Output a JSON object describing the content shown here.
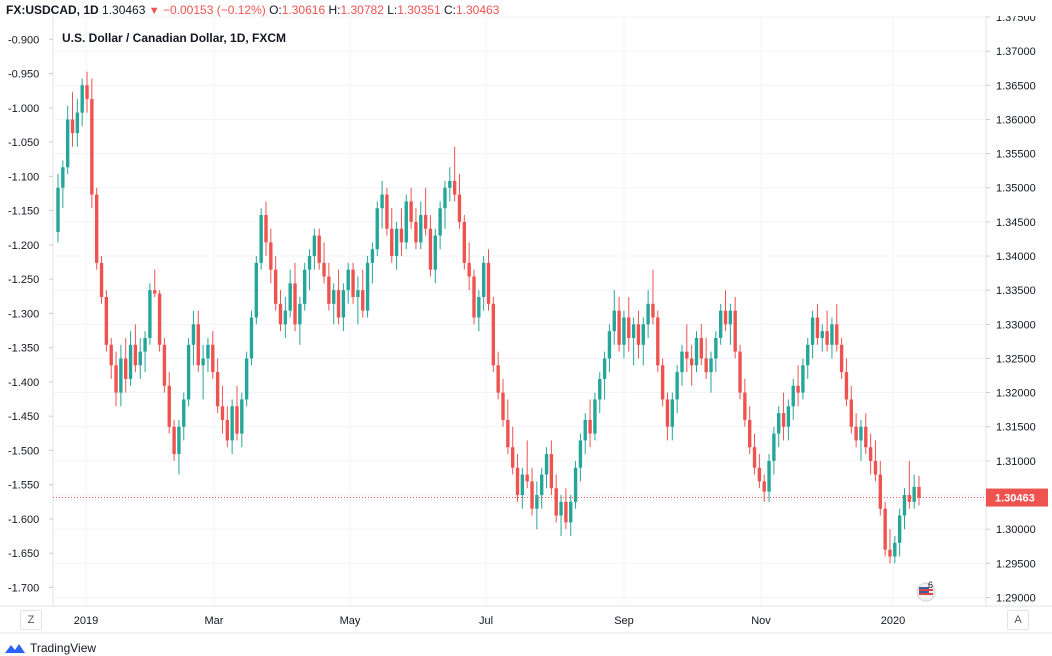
{
  "header": {
    "symbol": "FX:USDCAD, 1D",
    "last": "1.30463",
    "arrow": "▼",
    "change": "−0.00153 (−0.12%)",
    "open_label": "O:",
    "open": "1.30616",
    "high_label": "H:",
    "high": "1.30782",
    "low_label": "L:",
    "low": "1.30351",
    "close_label": "C:",
    "close": "1.30463"
  },
  "footer": {
    "brand": "TradingView",
    "z_button": "Z",
    "a_button": "A"
  },
  "colors": {
    "up": "#26a69a",
    "down": "#ef5350",
    "grid": "#f0f3fa",
    "axis": "#e0e3eb",
    "text": "#131722",
    "price_line": "#ef5350"
  },
  "chart_data": {
    "type": "candlestick",
    "title": "U.S. Dollar / Canadian Dollar, 1D, FXCM",
    "right_axis": {
      "range": [
        1.28875,
        1.37515
      ],
      "ticks": [
        "1.37500",
        "1.37000",
        "1.36500",
        "1.36000",
        "1.35500",
        "1.35000",
        "1.34500",
        "1.34000",
        "1.33500",
        "1.33000",
        "1.32500",
        "1.32000",
        "1.31500",
        "1.31000",
        "1.30500",
        "1.30000",
        "1.29500",
        "1.29000"
      ]
    },
    "left_axis": {
      "range": [
        -1.727,
        -0.866
      ],
      "ticks": [
        "-0.900",
        "-0.950",
        "-1.000",
        "-1.050",
        "-1.100",
        "-1.150",
        "-1.200",
        "-1.250",
        "-1.300",
        "-1.350",
        "-1.400",
        "-1.450",
        "-1.500",
        "-1.550",
        "-1.600",
        "-1.650",
        "-1.700"
      ]
    },
    "x_axis": {
      "labels": [
        "2019",
        "Mar",
        "May",
        "Jul",
        "Sep",
        "Nov",
        "2020"
      ]
    },
    "current_price": "1.30463",
    "grid": true,
    "candles": [
      [
        1.3435,
        1.352,
        1.342,
        1.35
      ],
      [
        1.35,
        1.354,
        1.347,
        1.353
      ],
      [
        1.353,
        1.362,
        1.352,
        1.36
      ],
      [
        1.36,
        1.364,
        1.356,
        1.358
      ],
      [
        1.358,
        1.363,
        1.356,
        1.361
      ],
      [
        1.361,
        1.366,
        1.359,
        1.365
      ],
      [
        1.365,
        1.367,
        1.361,
        1.363
      ],
      [
        1.363,
        1.366,
        1.347,
        1.349
      ],
      [
        1.349,
        1.35,
        1.338,
        1.339
      ],
      [
        1.339,
        1.34,
        1.333,
        1.334
      ],
      [
        1.334,
        1.335,
        1.326,
        1.327
      ],
      [
        1.327,
        1.328,
        1.322,
        1.324
      ],
      [
        1.324,
        1.326,
        1.318,
        1.32
      ],
      [
        1.32,
        1.327,
        1.318,
        1.325
      ],
      [
        1.325,
        1.328,
        1.32,
        1.322
      ],
      [
        1.322,
        1.329,
        1.321,
        1.327
      ],
      [
        1.327,
        1.33,
        1.323,
        1.324
      ],
      [
        1.324,
        1.328,
        1.322,
        1.326
      ],
      [
        1.326,
        1.329,
        1.323,
        1.328
      ],
      [
        1.328,
        1.336,
        1.327,
        1.335
      ],
      [
        1.335,
        1.338,
        1.334,
        1.3345
      ],
      [
        1.3345,
        1.335,
        1.326,
        1.327
      ],
      [
        1.327,
        1.328,
        1.32,
        1.321
      ],
      [
        1.321,
        1.323,
        1.314,
        1.315
      ],
      [
        1.315,
        1.316,
        1.31,
        1.311
      ],
      [
        1.311,
        1.316,
        1.308,
        1.315
      ],
      [
        1.315,
        1.32,
        1.313,
        1.319
      ],
      [
        1.319,
        1.328,
        1.318,
        1.327
      ],
      [
        1.327,
        1.332,
        1.324,
        1.33
      ],
      [
        1.33,
        1.332,
        1.323,
        1.324
      ],
      [
        1.324,
        1.327,
        1.319,
        1.325
      ],
      [
        1.325,
        1.328,
        1.323,
        1.327
      ],
      [
        1.327,
        1.329,
        1.322,
        1.323
      ],
      [
        1.323,
        1.325,
        1.317,
        1.318
      ],
      [
        1.318,
        1.321,
        1.314,
        1.316
      ],
      [
        1.316,
        1.318,
        1.312,
        1.313
      ],
      [
        1.313,
        1.319,
        1.311,
        1.318
      ],
      [
        1.318,
        1.321,
        1.313,
        1.314
      ],
      [
        1.314,
        1.32,
        1.312,
        1.319
      ],
      [
        1.319,
        1.326,
        1.318,
        1.325
      ],
      [
        1.325,
        1.332,
        1.324,
        1.331
      ],
      [
        1.331,
        1.34,
        1.33,
        1.339
      ],
      [
        1.339,
        1.347,
        1.338,
        1.346
      ],
      [
        1.346,
        1.348,
        1.34,
        1.342
      ],
      [
        1.342,
        1.344,
        1.336,
        1.338
      ],
      [
        1.338,
        1.34,
        1.332,
        1.333
      ],
      [
        1.333,
        1.335,
        1.329,
        1.33
      ],
      [
        1.33,
        1.334,
        1.328,
        1.332
      ],
      [
        1.332,
        1.338,
        1.331,
        1.336
      ],
      [
        1.336,
        1.339,
        1.329,
        1.33
      ],
      [
        1.33,
        1.334,
        1.327,
        1.333
      ],
      [
        1.333,
        1.339,
        1.332,
        1.338
      ],
      [
        1.338,
        1.341,
        1.335,
        1.34
      ],
      [
        1.34,
        1.344,
        1.338,
        1.343
      ],
      [
        1.343,
        1.344,
        1.338,
        1.339
      ],
      [
        1.339,
        1.342,
        1.336,
        1.337
      ],
      [
        1.337,
        1.339,
        1.332,
        1.333
      ],
      [
        1.333,
        1.336,
        1.33,
        1.335
      ],
      [
        1.335,
        1.338,
        1.33,
        1.331
      ],
      [
        1.331,
        1.336,
        1.329,
        1.335
      ],
      [
        1.335,
        1.339,
        1.333,
        1.338
      ],
      [
        1.338,
        1.339,
        1.333,
        1.334
      ],
      [
        1.334,
        1.337,
        1.33,
        1.335
      ],
      [
        1.335,
        1.338,
        1.331,
        1.332
      ],
      [
        1.332,
        1.34,
        1.331,
        1.339
      ],
      [
        1.339,
        1.342,
        1.336,
        1.341
      ],
      [
        1.341,
        1.348,
        1.34,
        1.347
      ],
      [
        1.347,
        1.351,
        1.344,
        1.349
      ],
      [
        1.349,
        1.35,
        1.343,
        1.344
      ],
      [
        1.344,
        1.347,
        1.339,
        1.34
      ],
      [
        1.34,
        1.345,
        1.338,
        1.344
      ],
      [
        1.344,
        1.347,
        1.34,
        1.342
      ],
      [
        1.342,
        1.349,
        1.341,
        1.348
      ],
      [
        1.348,
        1.35,
        1.344,
        1.345
      ],
      [
        1.345,
        1.347,
        1.341,
        1.342
      ],
      [
        1.342,
        1.348,
        1.341,
        1.346
      ],
      [
        1.346,
        1.35,
        1.343,
        1.344
      ],
      [
        1.344,
        1.346,
        1.337,
        1.338
      ],
      [
        1.338,
        1.344,
        1.336,
        1.343
      ],
      [
        1.343,
        1.348,
        1.341,
        1.347
      ],
      [
        1.347,
        1.351,
        1.344,
        1.35
      ],
      [
        1.35,
        1.353,
        1.348,
        1.351
      ],
      [
        1.351,
        1.356,
        1.348,
        1.349
      ],
      [
        1.349,
        1.352,
        1.344,
        1.345
      ],
      [
        1.345,
        1.346,
        1.338,
        1.339
      ],
      [
        1.339,
        1.342,
        1.335,
        1.337
      ],
      [
        1.337,
        1.338,
        1.33,
        1.331
      ],
      [
        1.331,
        1.335,
        1.329,
        1.334
      ],
      [
        1.334,
        1.34,
        1.332,
        1.339
      ],
      [
        1.339,
        1.341,
        1.332,
        1.333
      ],
      [
        1.333,
        1.334,
        1.323,
        1.324
      ],
      [
        1.324,
        1.326,
        1.319,
        1.32
      ],
      [
        1.32,
        1.322,
        1.315,
        1.316
      ],
      [
        1.316,
        1.319,
        1.311,
        1.312
      ],
      [
        1.312,
        1.315,
        1.308,
        1.309
      ],
      [
        1.309,
        1.311,
        1.304,
        1.305
      ],
      [
        1.305,
        1.309,
        1.303,
        1.308
      ],
      [
        1.308,
        1.313,
        1.306,
        1.307
      ],
      [
        1.307,
        1.309,
        1.302,
        1.303
      ],
      [
        1.303,
        1.307,
        1.3,
        1.305
      ],
      [
        1.305,
        1.309,
        1.303,
        1.308
      ],
      [
        1.308,
        1.312,
        1.306,
        1.311
      ],
      [
        1.311,
        1.313,
        1.305,
        1.306
      ],
      [
        1.306,
        1.308,
        1.301,
        1.302
      ],
      [
        1.302,
        1.305,
        1.299,
        1.304
      ],
      [
        1.304,
        1.306,
        1.3,
        1.301
      ],
      [
        1.301,
        1.305,
        1.299,
        1.304
      ],
      [
        1.304,
        1.31,
        1.303,
        1.309
      ],
      [
        1.309,
        1.314,
        1.307,
        1.313
      ],
      [
        1.313,
        1.317,
        1.311,
        1.316
      ],
      [
        1.316,
        1.319,
        1.312,
        1.314
      ],
      [
        1.314,
        1.32,
        1.313,
        1.319
      ],
      [
        1.319,
        1.323,
        1.317,
        1.322
      ],
      [
        1.322,
        1.326,
        1.319,
        1.325
      ],
      [
        1.325,
        1.33,
        1.323,
        1.329
      ],
      [
        1.329,
        1.335,
        1.327,
        1.332
      ],
      [
        1.332,
        1.334,
        1.326,
        1.327
      ],
      [
        1.327,
        1.332,
        1.325,
        1.331
      ],
      [
        1.331,
        1.334,
        1.326,
        1.328
      ],
      [
        1.328,
        1.331,
        1.324,
        1.33
      ],
      [
        1.33,
        1.332,
        1.325,
        1.327
      ],
      [
        1.327,
        1.331,
        1.324,
        1.33
      ],
      [
        1.33,
        1.335,
        1.328,
        1.333
      ],
      [
        1.333,
        1.338,
        1.33,
        1.331
      ],
      [
        1.331,
        1.332,
        1.323,
        1.324
      ],
      [
        1.324,
        1.325,
        1.318,
        1.319
      ],
      [
        1.319,
        1.32,
        1.313,
        1.315
      ],
      [
        1.315,
        1.32,
        1.313,
        1.319
      ],
      [
        1.319,
        1.324,
        1.317,
        1.323
      ],
      [
        1.323,
        1.327,
        1.321,
        1.326
      ],
      [
        1.326,
        1.33,
        1.323,
        1.325
      ],
      [
        1.325,
        1.327,
        1.321,
        1.324
      ],
      [
        1.324,
        1.329,
        1.323,
        1.328
      ],
      [
        1.328,
        1.33,
        1.324,
        1.325
      ],
      [
        1.325,
        1.328,
        1.322,
        1.323
      ],
      [
        1.323,
        1.326,
        1.32,
        1.325
      ],
      [
        1.325,
        1.329,
        1.323,
        1.328
      ],
      [
        1.328,
        1.333,
        1.327,
        1.332
      ],
      [
        1.332,
        1.335,
        1.329,
        1.33
      ],
      [
        1.33,
        1.333,
        1.327,
        1.332
      ],
      [
        1.332,
        1.334,
        1.325,
        1.326
      ],
      [
        1.326,
        1.327,
        1.319,
        1.32
      ],
      [
        1.32,
        1.322,
        1.315,
        1.316
      ],
      [
        1.316,
        1.318,
        1.311,
        1.312
      ],
      [
        1.312,
        1.314,
        1.308,
        1.309
      ],
      [
        1.309,
        1.311,
        1.306,
        1.307
      ],
      [
        1.307,
        1.308,
        1.304,
        1.3055
      ],
      [
        1.3055,
        1.311,
        1.304,
        1.31
      ],
      [
        1.31,
        1.315,
        1.308,
        1.314
      ],
      [
        1.314,
        1.318,
        1.312,
        1.317
      ],
      [
        1.317,
        1.32,
        1.313,
        1.315
      ],
      [
        1.315,
        1.319,
        1.313,
        1.318
      ],
      [
        1.318,
        1.322,
        1.316,
        1.321
      ],
      [
        1.321,
        1.324,
        1.318,
        1.32
      ],
      [
        1.32,
        1.325,
        1.319,
        1.324
      ],
      [
        1.324,
        1.328,
        1.322,
        1.327
      ],
      [
        1.327,
        1.332,
        1.325,
        1.331
      ],
      [
        1.331,
        1.333,
        1.327,
        1.328
      ],
      [
        1.328,
        1.33,
        1.326,
        1.329
      ],
      [
        1.329,
        1.332,
        1.326,
        1.327
      ],
      [
        1.327,
        1.331,
        1.325,
        1.33
      ],
      [
        1.33,
        1.333,
        1.326,
        1.327
      ],
      [
        1.327,
        1.328,
        1.322,
        1.323
      ],
      [
        1.323,
        1.325,
        1.318,
        1.319
      ],
      [
        1.319,
        1.321,
        1.314,
        1.315
      ],
      [
        1.315,
        1.317,
        1.312,
        1.313
      ],
      [
        1.313,
        1.316,
        1.31,
        1.315
      ],
      [
        1.315,
        1.317,
        1.311,
        1.312
      ],
      [
        1.312,
        1.314,
        1.308,
        1.31
      ],
      [
        1.31,
        1.313,
        1.307,
        1.308
      ],
      [
        1.308,
        1.31,
        1.302,
        1.303
      ],
      [
        1.303,
        1.304,
        1.296,
        1.297
      ],
      [
        1.297,
        1.3,
        1.295,
        1.296
      ],
      [
        1.296,
        1.299,
        1.295,
        1.298
      ],
      [
        1.298,
        1.303,
        1.296,
        1.302
      ],
      [
        1.302,
        1.306,
        1.3,
        1.305
      ],
      [
        1.305,
        1.31,
        1.303,
        1.304
      ],
      [
        1.304,
        1.308,
        1.303,
        1.3062
      ],
      [
        1.3062,
        1.3078,
        1.3035,
        1.3046
      ]
    ],
    "candle_colors": "up = close above open, down = close below open"
  }
}
